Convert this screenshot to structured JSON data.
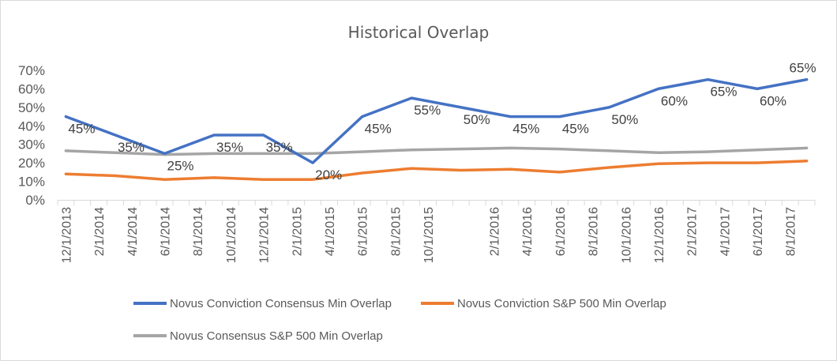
{
  "chart_data": {
    "type": "line",
    "title": "Historical Overlap",
    "xlabel": "",
    "ylabel": "",
    "ylim": [
      0,
      0.7
    ],
    "y_ticks": [
      "0%",
      "10%",
      "20%",
      "30%",
      "40%",
      "50%",
      "60%",
      "70%"
    ],
    "grid": false,
    "legend_position": "bottom",
    "x": [
      "12/1/2013",
      "1/1/2014",
      "2/1/2014",
      "3/1/2014",
      "4/1/2014",
      "5/1/2014",
      "6/1/2014",
      "7/1/2014",
      "8/1/2014",
      "9/1/2014",
      "10/1/2014",
      "11/1/2014",
      "12/1/2014",
      "1/1/2015",
      "2/1/2015",
      "3/1/2015",
      "4/1/2015",
      "5/1/2015",
      "6/1/2015",
      "7/1/2015",
      "8/1/2015",
      "9/1/2015",
      "10/1/2015",
      "11/1/2015",
      "12/1/2015",
      "1/1/2016",
      "2/1/2016",
      "3/1/2016",
      "4/1/2016",
      "5/1/2016",
      "6/1/2016",
      "7/1/2016",
      "8/1/2016",
      "9/1/2016",
      "10/1/2016",
      "11/1/2016",
      "12/1/2016",
      "1/1/2017",
      "2/1/2017",
      "3/1/2017",
      "4/1/2017",
      "5/1/2017",
      "6/1/2017",
      "7/1/2017",
      "8/1/2017",
      "9/1/2017"
    ],
    "x_tick_labels": [
      "12/1/2013",
      "2/1/2014",
      "4/1/2014",
      "6/1/2014",
      "8/1/2014",
      "10/1/2014",
      "12/1/2014",
      "2/1/2015",
      "4/1/2015",
      "6/1/2015",
      "8/1/2015",
      "10/1/2015",
      "2/1/2016",
      "4/1/2016",
      "6/1/2016",
      "8/1/2016",
      "10/1/2016",
      "12/1/2016",
      "2/1/2017",
      "4/1/2017",
      "6/1/2017",
      "8/1/2017"
    ],
    "series": [
      {
        "name": "Novus Conviction Consensus Min Overlap",
        "color": "#4472c4",
        "points": [
          {
            "x": "12/1/2013",
            "y": 0.45,
            "label": "45%"
          },
          {
            "x": "3/1/2014",
            "y": 0.35,
            "label": "35%"
          },
          {
            "x": "6/1/2014",
            "y": 0.25,
            "label": "25%"
          },
          {
            "x": "9/1/2014",
            "y": 0.35,
            "label": "35%"
          },
          {
            "x": "12/1/2014",
            "y": 0.35,
            "label": "35%"
          },
          {
            "x": "3/1/2015",
            "y": 0.2,
            "label": "20%"
          },
          {
            "x": "6/1/2015",
            "y": 0.45,
            "label": "45%"
          },
          {
            "x": "9/1/2015",
            "y": 0.55,
            "label": "55%"
          },
          {
            "x": "12/1/2015",
            "y": 0.5,
            "label": "50%"
          },
          {
            "x": "3/1/2016",
            "y": 0.45,
            "label": "45%"
          },
          {
            "x": "6/1/2016",
            "y": 0.45,
            "label": "45%"
          },
          {
            "x": "9/1/2016",
            "y": 0.5,
            "label": "50%"
          },
          {
            "x": "12/1/2016",
            "y": 0.6,
            "label": "60%"
          },
          {
            "x": "3/1/2017",
            "y": 0.65,
            "label": "65%"
          },
          {
            "x": "6/1/2017",
            "y": 0.6,
            "label": "60%"
          },
          {
            "x": "9/1/2017",
            "y": 0.65,
            "label": "65%"
          }
        ]
      },
      {
        "name": "Novus Conviction S&P 500 Min Overlap",
        "color": "#ed7d31",
        "points": [
          {
            "x": "12/1/2013",
            "y": 0.14
          },
          {
            "x": "3/1/2014",
            "y": 0.13
          },
          {
            "x": "6/1/2014",
            "y": 0.11
          },
          {
            "x": "9/1/2014",
            "y": 0.12
          },
          {
            "x": "12/1/2014",
            "y": 0.11
          },
          {
            "x": "3/1/2015",
            "y": 0.11
          },
          {
            "x": "6/1/2015",
            "y": 0.145
          },
          {
            "x": "9/1/2015",
            "y": 0.17
          },
          {
            "x": "12/1/2015",
            "y": 0.16
          },
          {
            "x": "3/1/2016",
            "y": 0.165
          },
          {
            "x": "6/1/2016",
            "y": 0.15
          },
          {
            "x": "9/1/2016",
            "y": 0.175
          },
          {
            "x": "12/1/2016",
            "y": 0.195
          },
          {
            "x": "3/1/2017",
            "y": 0.2
          },
          {
            "x": "6/1/2017",
            "y": 0.2
          },
          {
            "x": "9/1/2017",
            "y": 0.21
          }
        ]
      },
      {
        "name": "Novus Consensus S&P 500 Min Overlap",
        "color": "#a5a5a5",
        "points": [
          {
            "x": "12/1/2013",
            "y": 0.265
          },
          {
            "x": "3/1/2014",
            "y": 0.255
          },
          {
            "x": "6/1/2014",
            "y": 0.245
          },
          {
            "x": "9/1/2014",
            "y": 0.25
          },
          {
            "x": "12/1/2014",
            "y": 0.25
          },
          {
            "x": "3/1/2015",
            "y": 0.25
          },
          {
            "x": "6/1/2015",
            "y": 0.26
          },
          {
            "x": "9/1/2015",
            "y": 0.27
          },
          {
            "x": "12/1/2015",
            "y": 0.275
          },
          {
            "x": "3/1/2016",
            "y": 0.28
          },
          {
            "x": "6/1/2016",
            "y": 0.275
          },
          {
            "x": "9/1/2016",
            "y": 0.265
          },
          {
            "x": "12/1/2016",
            "y": 0.255
          },
          {
            "x": "3/1/2017",
            "y": 0.26
          },
          {
            "x": "6/1/2017",
            "y": 0.27
          },
          {
            "x": "9/1/2017",
            "y": 0.28
          }
        ]
      }
    ]
  }
}
